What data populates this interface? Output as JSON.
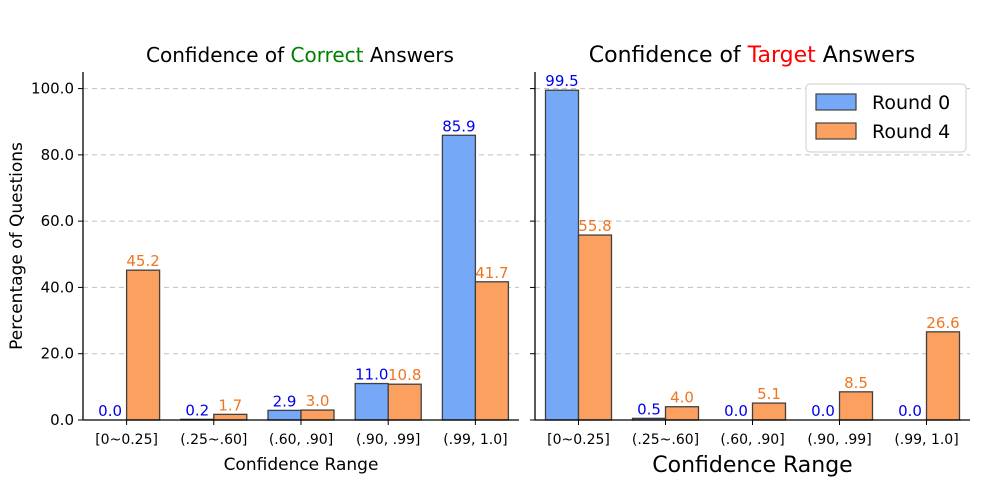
{
  "chart_data": [
    {
      "type": "bar",
      "title_parts": [
        "Confidence of ",
        "Correct",
        " Answers"
      ],
      "xlabel": "Confidence Range",
      "ylabel": "Percentage of Questions",
      "categories": [
        "[0~0.25]",
        "(.25~.60]",
        "(.60, .90]",
        "(.90, .99]",
        "(.99, 1.0]"
      ],
      "ylim": [
        0,
        105
      ],
      "yticks": [
        "0.0",
        "20.0",
        "40.0",
        "60.0",
        "80.0",
        "100.0"
      ],
      "grid": "y",
      "series": [
        {
          "name": "Round 0",
          "values": [
            0.0,
            0.2,
            2.9,
            11.0,
            85.9
          ],
          "labels": [
            "0.0",
            "0.2",
            "2.9",
            "11.0",
            "85.9"
          ]
        },
        {
          "name": "Round 4",
          "values": [
            45.2,
            1.7,
            3.0,
            10.8,
            41.7
          ],
          "labels": [
            "45.2",
            "1.7",
            "3.0",
            "10.8",
            "41.7"
          ]
        }
      ]
    },
    {
      "type": "bar",
      "title_parts": [
        "Confidence of ",
        "Target",
        " Answers"
      ],
      "xlabel": "Confidence Range",
      "ylabel": "",
      "categories": [
        "[0~0.25]",
        "(.25~.60]",
        "(.60, .90]",
        "(.90, .99]",
        "(.99, 1.0]"
      ],
      "ylim": [
        0,
        105
      ],
      "grid": "y",
      "legend": "top-right",
      "series": [
        {
          "name": "Round 0",
          "values": [
            99.5,
            0.5,
            0.0,
            0.0,
            0.0
          ],
          "labels": [
            "99.5",
            "0.5",
            "0.0",
            "0.0",
            "0.0"
          ]
        },
        {
          "name": "Round 4",
          "values": [
            55.8,
            4.0,
            5.1,
            8.5,
            26.6
          ],
          "labels": [
            "55.8",
            "4.0",
            "5.1",
            "8.5",
            "26.6"
          ]
        }
      ]
    }
  ],
  "colors": {
    "round0_fill": "#76a8f8",
    "round4_fill": "#fba05e",
    "round0_label": "#0000ee",
    "round4_label": "#ef7522",
    "correct_word": "#008000",
    "target_word": "#ff0000",
    "bar_edge": "#404040",
    "grid": "#c0c0c0"
  }
}
